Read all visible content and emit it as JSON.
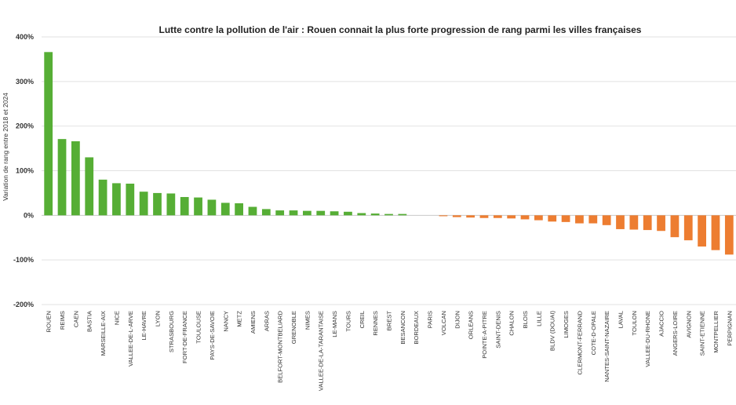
{
  "chart_data": {
    "type": "bar",
    "title": "Lutte contre la pollution de l'air : Rouen connait la plus forte progression de rang parmi les villes françaises",
    "ylabel": "Variation de rang entre 2018 et 2024",
    "xlabel": "",
    "ylim": [
      -200,
      400
    ],
    "yticks": [
      400,
      300,
      200,
      100,
      0,
      -100,
      -200
    ],
    "yticks_labels": [
      "400%",
      "300%",
      "200%",
      "100%",
      "0%",
      "-100%",
      "-200%"
    ],
    "grid": true,
    "colors": {
      "positive": "#56ae35",
      "negative": "#ed7d31"
    },
    "categories": [
      "ROUEN",
      "REIMS",
      "CAEN",
      "BASTIA",
      "MARSEILLE-AIX",
      "NICE",
      "VALLEE-DE-L-ARVE",
      "LE-HAVRE",
      "LYON",
      "STRASBOURG",
      "FORT-DE-FRANCE",
      "TOULOUSE",
      "PAYS-DE-SAVOIE",
      "NANCY",
      "METZ",
      "AMIENS",
      "ARRAS",
      "BELFORT-MONTBELIARD",
      "GRENOBLE",
      "NIMES",
      "VALLEE-DE-LA-TARANTAISE",
      "LE-MANS",
      "TOURS",
      "CREIL",
      "RENNES",
      "BREST",
      "BESANCON",
      "BORDEAUX",
      "PARIS",
      "VOLCAN",
      "DIJON",
      "ORLEANS",
      "POINTE-A-PITRE",
      "SAINT-DENIS",
      "CHALON",
      "BLOIS",
      "LILLE",
      "BLDV (DOUAI)",
      "LIMOGES",
      "CLERMONT-FERRAND",
      "COTE-D-OPALE",
      "NANTES-SAINT-NAZAIRE",
      "LAVAL",
      "TOULON",
      "VALLEE-DU-RHONE",
      "AJACCIO",
      "ANGERS-LOIRE",
      "AVIGNON",
      "SAINT-ETIENNE",
      "MONTPELLIER",
      "PERPIGNAN"
    ],
    "values": [
      366,
      171,
      166,
      130,
      80,
      72,
      71,
      53,
      50,
      49,
      41,
      40,
      35,
      28,
      27,
      19,
      14,
      11,
      11,
      10,
      10,
      9,
      8,
      5,
      4,
      3,
      3,
      0,
      0,
      -2,
      -4,
      -5,
      -6,
      -6,
      -7,
      -9,
      -11,
      -14,
      -15,
      -18,
      -18,
      -22,
      -31,
      -32,
      -33,
      -35,
      -49,
      -56,
      -70,
      -78,
      -88
    ]
  }
}
